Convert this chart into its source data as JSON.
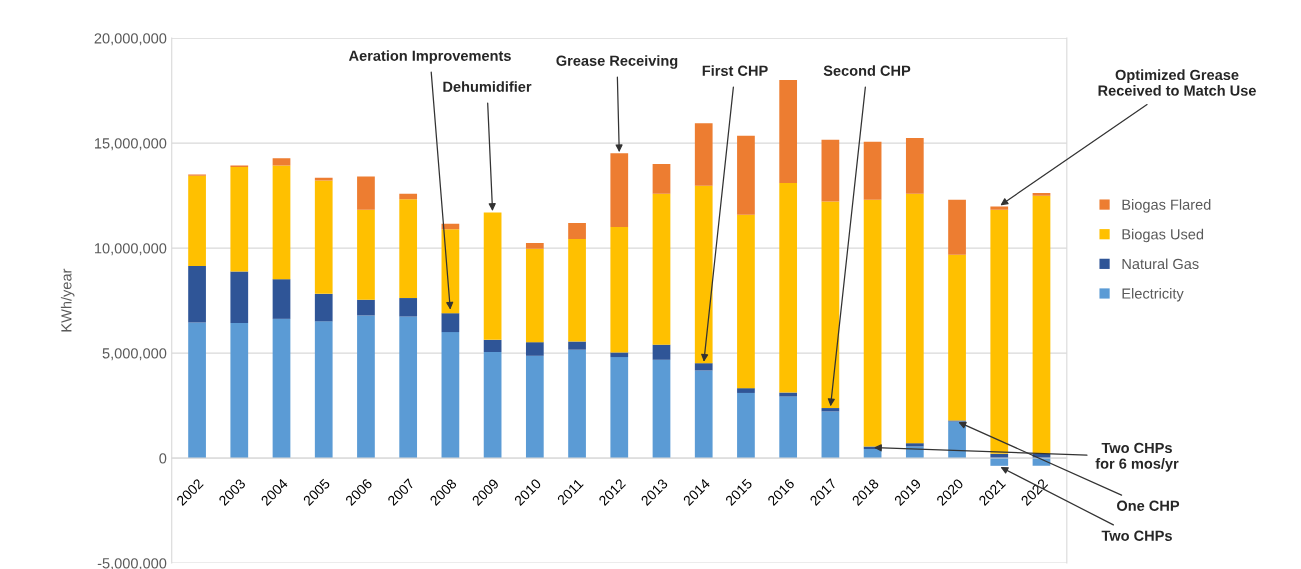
{
  "chart_data": {
    "type": "bar",
    "stacked": true,
    "categories": [
      "2002",
      "2003",
      "2004",
      "2005",
      "2006",
      "2007",
      "2008",
      "2009",
      "2010",
      "2011",
      "2012",
      "2013",
      "2014",
      "2015",
      "2016",
      "2017",
      "2018",
      "2019",
      "2020",
      "2021",
      "2022"
    ],
    "series": [
      {
        "name": "Electricity",
        "color": "#5b9bd5",
        "values": [
          6450000,
          6430000,
          6630000,
          6510000,
          6790000,
          6740000,
          6000000,
          5050000,
          4870000,
          5160000,
          4810000,
          4680000,
          4170000,
          3100000,
          2930000,
          2220000,
          430000,
          550000,
          1740000,
          -370000,
          -370000
        ]
      },
      {
        "name": "Natural Gas",
        "color": "#2f5597",
        "values": [
          2700000,
          2460000,
          1890000,
          1310000,
          750000,
          880000,
          900000,
          580000,
          650000,
          390000,
          220000,
          720000,
          350000,
          230000,
          190000,
          160000,
          120000,
          160000,
          50000,
          200000,
          200000
        ]
      },
      {
        "name": "Biogas Used",
        "color": "#ffc000",
        "values": [
          4300000,
          4970000,
          5410000,
          5400000,
          4280000,
          4710000,
          4000000,
          6070000,
          4450000,
          4880000,
          5970000,
          7190000,
          8450000,
          8260000,
          9980000,
          9840000,
          11750000,
          11880000,
          7890000,
          11630000,
          12290000
        ]
      },
      {
        "name": "Biogas Flared",
        "color": "#ed7d31",
        "values": [
          50000,
          70000,
          350000,
          130000,
          1590000,
          260000,
          260000,
          0,
          270000,
          760000,
          3520000,
          1420000,
          2980000,
          3760000,
          4900000,
          2940000,
          2760000,
          2650000,
          2620000,
          150000,
          130000
        ]
      }
    ],
    "ylabel": "KWh/year",
    "ylim": [
      -5000000,
      20000000
    ],
    "yticks": [
      {
        "value": -5000000,
        "label": "-5,000,000"
      },
      {
        "value": 0,
        "label": "0"
      },
      {
        "value": 5000000,
        "label": "5,000,000"
      },
      {
        "value": 10000000,
        "label": "10,000,000"
      },
      {
        "value": 15000000,
        "label": "15,000,000"
      },
      {
        "value": 20000000,
        "label": "20,000,000"
      }
    ],
    "grid": "y",
    "legend": "right",
    "annotations": [
      {
        "text": "Aeration Improvements",
        "x": "2008",
        "y": 7000000
      },
      {
        "text": "Dehumidifier",
        "x": "2009",
        "y": 11700000
      },
      {
        "text": "Grease Receiving",
        "x": "2012",
        "y": 14500000
      },
      {
        "text": "First CHP",
        "x": "2014",
        "y": 4520000
      },
      {
        "text": "Second CHP",
        "x": "2017",
        "y": 2400000
      },
      {
        "text": "Optimized Grease\nReceived to Match Use",
        "x": "2021",
        "y": 12000000
      },
      {
        "text": "Two CHPs\nfor 6 mos/yr",
        "x": "2018",
        "y": 500000
      },
      {
        "text": "One CHP",
        "x": "2020",
        "y": 1740000
      },
      {
        "text": "Two CHPs",
        "x": "2021",
        "y": -400000
      }
    ]
  }
}
